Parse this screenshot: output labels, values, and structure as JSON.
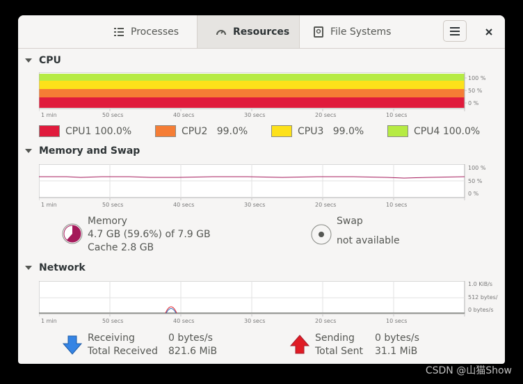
{
  "tabs": [
    {
      "label": "Processes",
      "icon": "list-icon",
      "active": false
    },
    {
      "label": "Resources",
      "icon": "gauge-icon",
      "active": true
    },
    {
      "label": "File Systems",
      "icon": "disk-icon",
      "active": false
    }
  ],
  "time_ticks": [
    "1 min",
    "50 secs",
    "40 secs",
    "30 secs",
    "20 secs",
    "10 secs"
  ],
  "cpu": {
    "title": "CPU",
    "y_ticks": [
      "100 %",
      "50 %",
      "0 %"
    ],
    "cores": [
      {
        "name": "CPU1",
        "value": "100.0%",
        "color": "#e01b3c"
      },
      {
        "name": "CPU2",
        "value": "99.0%",
        "color": "#f57d35"
      },
      {
        "name": "CPU3",
        "value": "99.0%",
        "color": "#fde11a"
      },
      {
        "name": "CPU4",
        "value": "100.0%",
        "color": "#b6eb43"
      }
    ]
  },
  "memory": {
    "title": "Memory and Swap",
    "y_ticks": [
      "100 %",
      "50 %",
      "0 %"
    ],
    "mem_label": "Memory",
    "mem_usage": "4.7 GB (59.6%) of 7.9 GB",
    "mem_cache": "Cache 2.8 GB",
    "mem_color": "#a4195a",
    "swap_label": "Swap",
    "swap_status": "not available"
  },
  "network": {
    "title": "Network",
    "y_ticks": [
      "1.0 KiB/s",
      "512 bytes/s",
      "0 bytes/s"
    ],
    "receiving_label": "Receiving",
    "receiving_value": "0 bytes/s",
    "total_received_label": "Total Received",
    "total_received_value": "821.6 MiB",
    "sending_label": "Sending",
    "sending_value": "0 bytes/s",
    "total_sent_label": "Total Sent",
    "total_sent_value": "31.1 MiB"
  },
  "watermark": "CSDN @山猫Show"
}
